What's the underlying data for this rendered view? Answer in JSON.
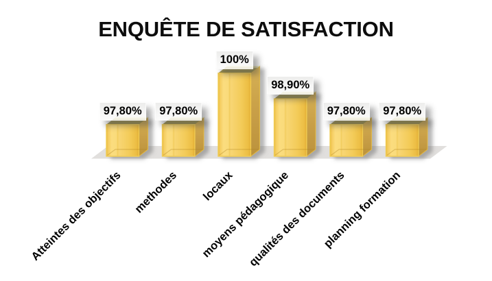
{
  "title": "ENQUÊTE DE SATISFACTION",
  "chart_data": {
    "type": "bar",
    "style": "3d-box",
    "title": "ENQUÊTE DE SATISFACTION",
    "categories": [
      "Atteintes des objectifs",
      "methodes",
      "locaux",
      "moyens pédagogique",
      "qualités des documents",
      "planning formation"
    ],
    "values": [
      97.8,
      97.8,
      100,
      98.9,
      97.8,
      97.8
    ],
    "value_labels": [
      "97,80%",
      "97,80%",
      "100%",
      "98,90%",
      "97,80%",
      "97,80%"
    ],
    "xlabel": "",
    "ylabel": "",
    "ylim": [
      96.44,
      100.2
    ],
    "grid": false,
    "legend": false,
    "colors": {
      "bar_front": "#f7d46a",
      "bar_edge": "#edc64a",
      "bar_side": "#c89f47",
      "bar_top": "#a2964f",
      "floor": "#e1dfdd",
      "label_background": "#f0f0ef",
      "text": "#000000"
    }
  }
}
